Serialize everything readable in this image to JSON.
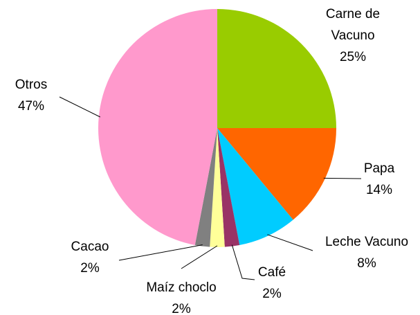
{
  "chart_data": {
    "type": "pie",
    "categories": [
      "Carne de Vacuno",
      "Papa",
      "Leche Vacuno",
      "Café",
      "Maíz choclo",
      "Cacao",
      "Otros"
    ],
    "values": [
      25,
      14,
      8,
      2,
      2,
      2,
      47
    ],
    "value_labels": [
      "25%",
      "14%",
      "8%",
      "2%",
      "2%",
      "2%",
      "47%"
    ],
    "colors": [
      "#99cc00",
      "#ff6600",
      "#00ccff",
      "#993366",
      "#ffff99",
      "#808080",
      "#ff99cc"
    ]
  }
}
